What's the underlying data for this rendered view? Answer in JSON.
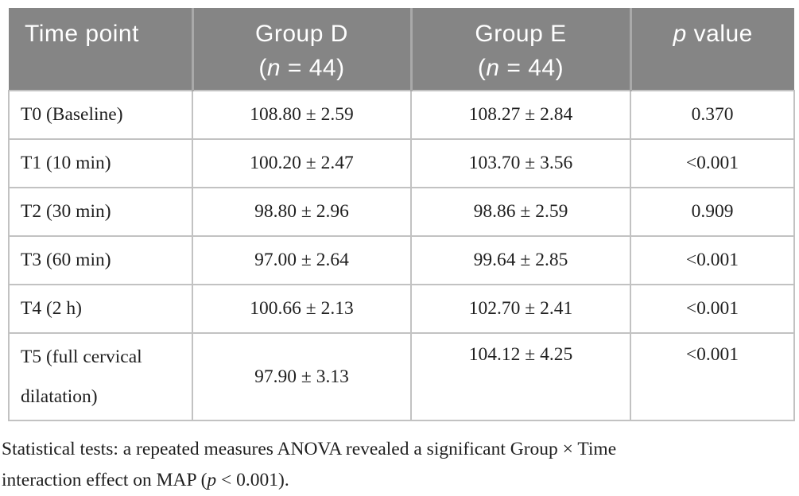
{
  "colors": {
    "header_bg": "#858585",
    "header_divider": "#a9a9a9",
    "header_text": "#ffffff",
    "grid_line": "#c2c2c2",
    "body_text": "#1f1f1f"
  },
  "header": {
    "time_point": "Time point",
    "group_d_line1": "Group D",
    "group_e_line1": "Group E",
    "n_paren_open": "(",
    "n_italic": "n",
    "n_rest": " = 44)",
    "p_italic": "p",
    "p_rest": " value"
  },
  "rows": [
    {
      "time": "T0 (Baseline)",
      "group_d": "108.80 ± 2.59",
      "group_e": "108.27 ± 2.84",
      "p": "0.370"
    },
    {
      "time": "T1 (10 min)",
      "group_d": "100.20 ± 2.47",
      "group_e": "103.70 ± 3.56",
      "p": "<0.001"
    },
    {
      "time": "T2 (30 min)",
      "group_d": "98.80 ± 2.96",
      "group_e": "98.86 ± 2.59",
      "p": "0.909"
    },
    {
      "time": "T3 (60 min)",
      "group_d": "97.00 ± 2.64",
      "group_e": "99.64 ± 2.85",
      "p": "<0.001"
    },
    {
      "time": "T4 (2 h)",
      "group_d": "100.66 ± 2.13",
      "group_e": "102.70 ± 2.41",
      "p": "<0.001"
    },
    {
      "time": "T5 (full cervical dilatation)",
      "group_d": "97.90 ± 3.13",
      "group_e": "104.12 ± 4.25",
      "p": "<0.001"
    }
  ],
  "footnote": {
    "line1": "Statistical tests: a repeated measures ANOVA revealed a significant Group × Time",
    "line2_pre": "interaction effect on MAP (",
    "line2_p": "p",
    "line2_post": " < 0.001)."
  }
}
